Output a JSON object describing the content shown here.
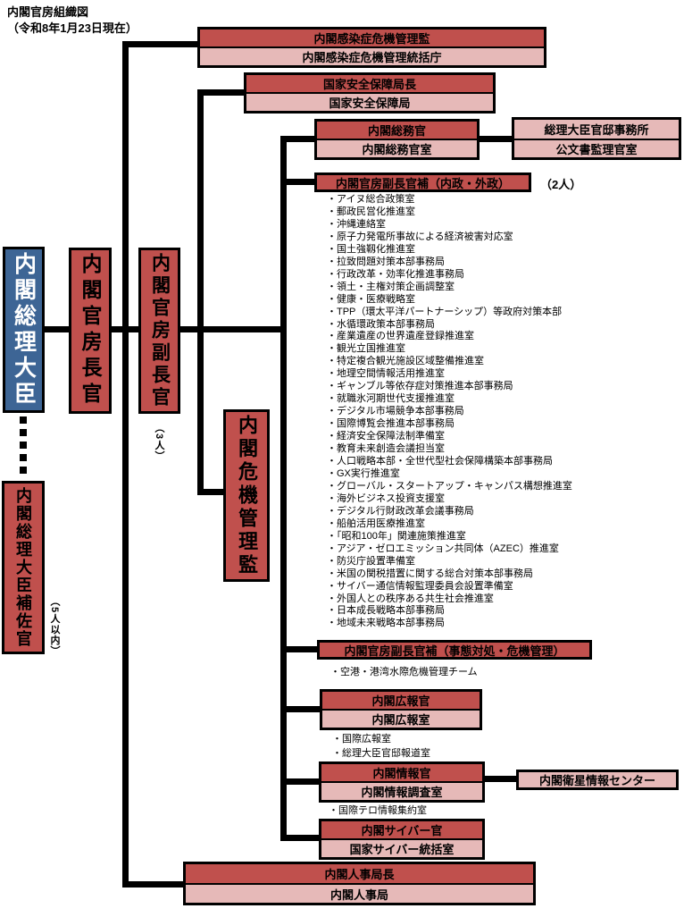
{
  "title": "内閣官房組織図",
  "subtitle": "（令和8年1月23日現在）",
  "colors": {
    "dark_red": "#C0504D",
    "light_pink": "#E6B9B8",
    "blue": "#3D6595",
    "line": "#000000"
  },
  "left_column": {
    "prime_minister": "内閣総理大臣",
    "chief_cabinet_secretary": "内閣官房長官",
    "deputy_chief_cabinet_secretary": "内閣官房副長官",
    "deputy_count": "（3人）",
    "crisis_management_director": "内閣危機管理監",
    "pm_special_advisor": "内閣総理大臣補佐官",
    "advisor_count": "（5人以内）"
  },
  "boxes": {
    "infection": {
      "head": "内閣感染症危機管理監",
      "org": "内閣感染症危機管理統括庁"
    },
    "nss": {
      "head": "国家安全保障局長",
      "org": "国家安全保障局"
    },
    "somukan": {
      "head": "内閣総務官",
      "org": "内閣総務官室"
    },
    "kantei": {
      "top": "総理大臣官邸事務所",
      "bottom": "公文書監理官室"
    },
    "assistant_domestic": {
      "label": "内閣官房副長官補（内政・外政）",
      "count": "（2人）"
    },
    "assistant_crisis": {
      "label": "内閣官房副長官補（事態対処・危機管理）"
    },
    "kouhou": {
      "head": "内閣広報官",
      "org": "内閣広報室"
    },
    "jouhou": {
      "head": "内閣情報官",
      "org": "内閣情報調査室"
    },
    "satellite": {
      "label": "内閣衛星情報センター"
    },
    "cyber": {
      "head": "内閣サイバー官",
      "org": "国家サイバー統括室"
    },
    "jinji": {
      "head": "内閣人事局長",
      "org": "内閣人事局"
    }
  },
  "lists": {
    "domestic_offices": [
      "・アイヌ総合政策室",
      "・郵政民営化推進室",
      "・沖縄連絡室",
      "・原子力発電所事故による経済被害対応室",
      "・国土強靱化推進室",
      "・拉致問題対策本部事務局",
      "・行政改革・効率化推進事務局",
      "・領土・主権対策企画調整室",
      "・健康・医療戦略室",
      "・TPP（環太平洋パートナーシップ）等政府対策本部",
      "・水循環政策本部事務局",
      "・産業遺産の世界遺産登録推進室",
      "・観光立国推進室",
      "・特定複合観光施設区域整備推進室",
      "・地理空間情報活用推進室",
      "・ギャンブル等依存症対策推進本部事務局",
      "・就職氷河期世代支援推進室",
      "・デジタル市場競争本部事務局",
      "・国際博覧会推進本部事務局",
      "・経済安全保障法制準備室",
      "・教育未来創造会議担当室",
      "・人口戦略本部・全世代型社会保障構築本部事務局",
      "・GX実行推進室",
      "・グローバル・スタートアップ・キャンパス構想推進室",
      "・海外ビジネス投資支援室",
      "・デジタル行財政改革会議事務局",
      "・船舶活用医療推進室",
      "・「昭和100年」関連施策推進室",
      "・アジア・ゼロエミッション共同体（AZEC）推進室",
      "・防災庁設置準備室",
      "・米国の関税措置に関する総合対策本部事務局",
      "・サイバー通信情報監理委員会設置準備室",
      "・外国人との秩序ある共生社会推進室",
      "・日本成長戦略本部事務局",
      "・地域未来戦略本部事務局"
    ],
    "crisis_offices": [
      "・空港・港湾水際危機管理チーム"
    ],
    "kouhou_offices": [
      "・国際広報室",
      "・総理大臣官邸報道室"
    ],
    "jouhou_offices": [
      "・国際テロ情報集約室"
    ]
  }
}
